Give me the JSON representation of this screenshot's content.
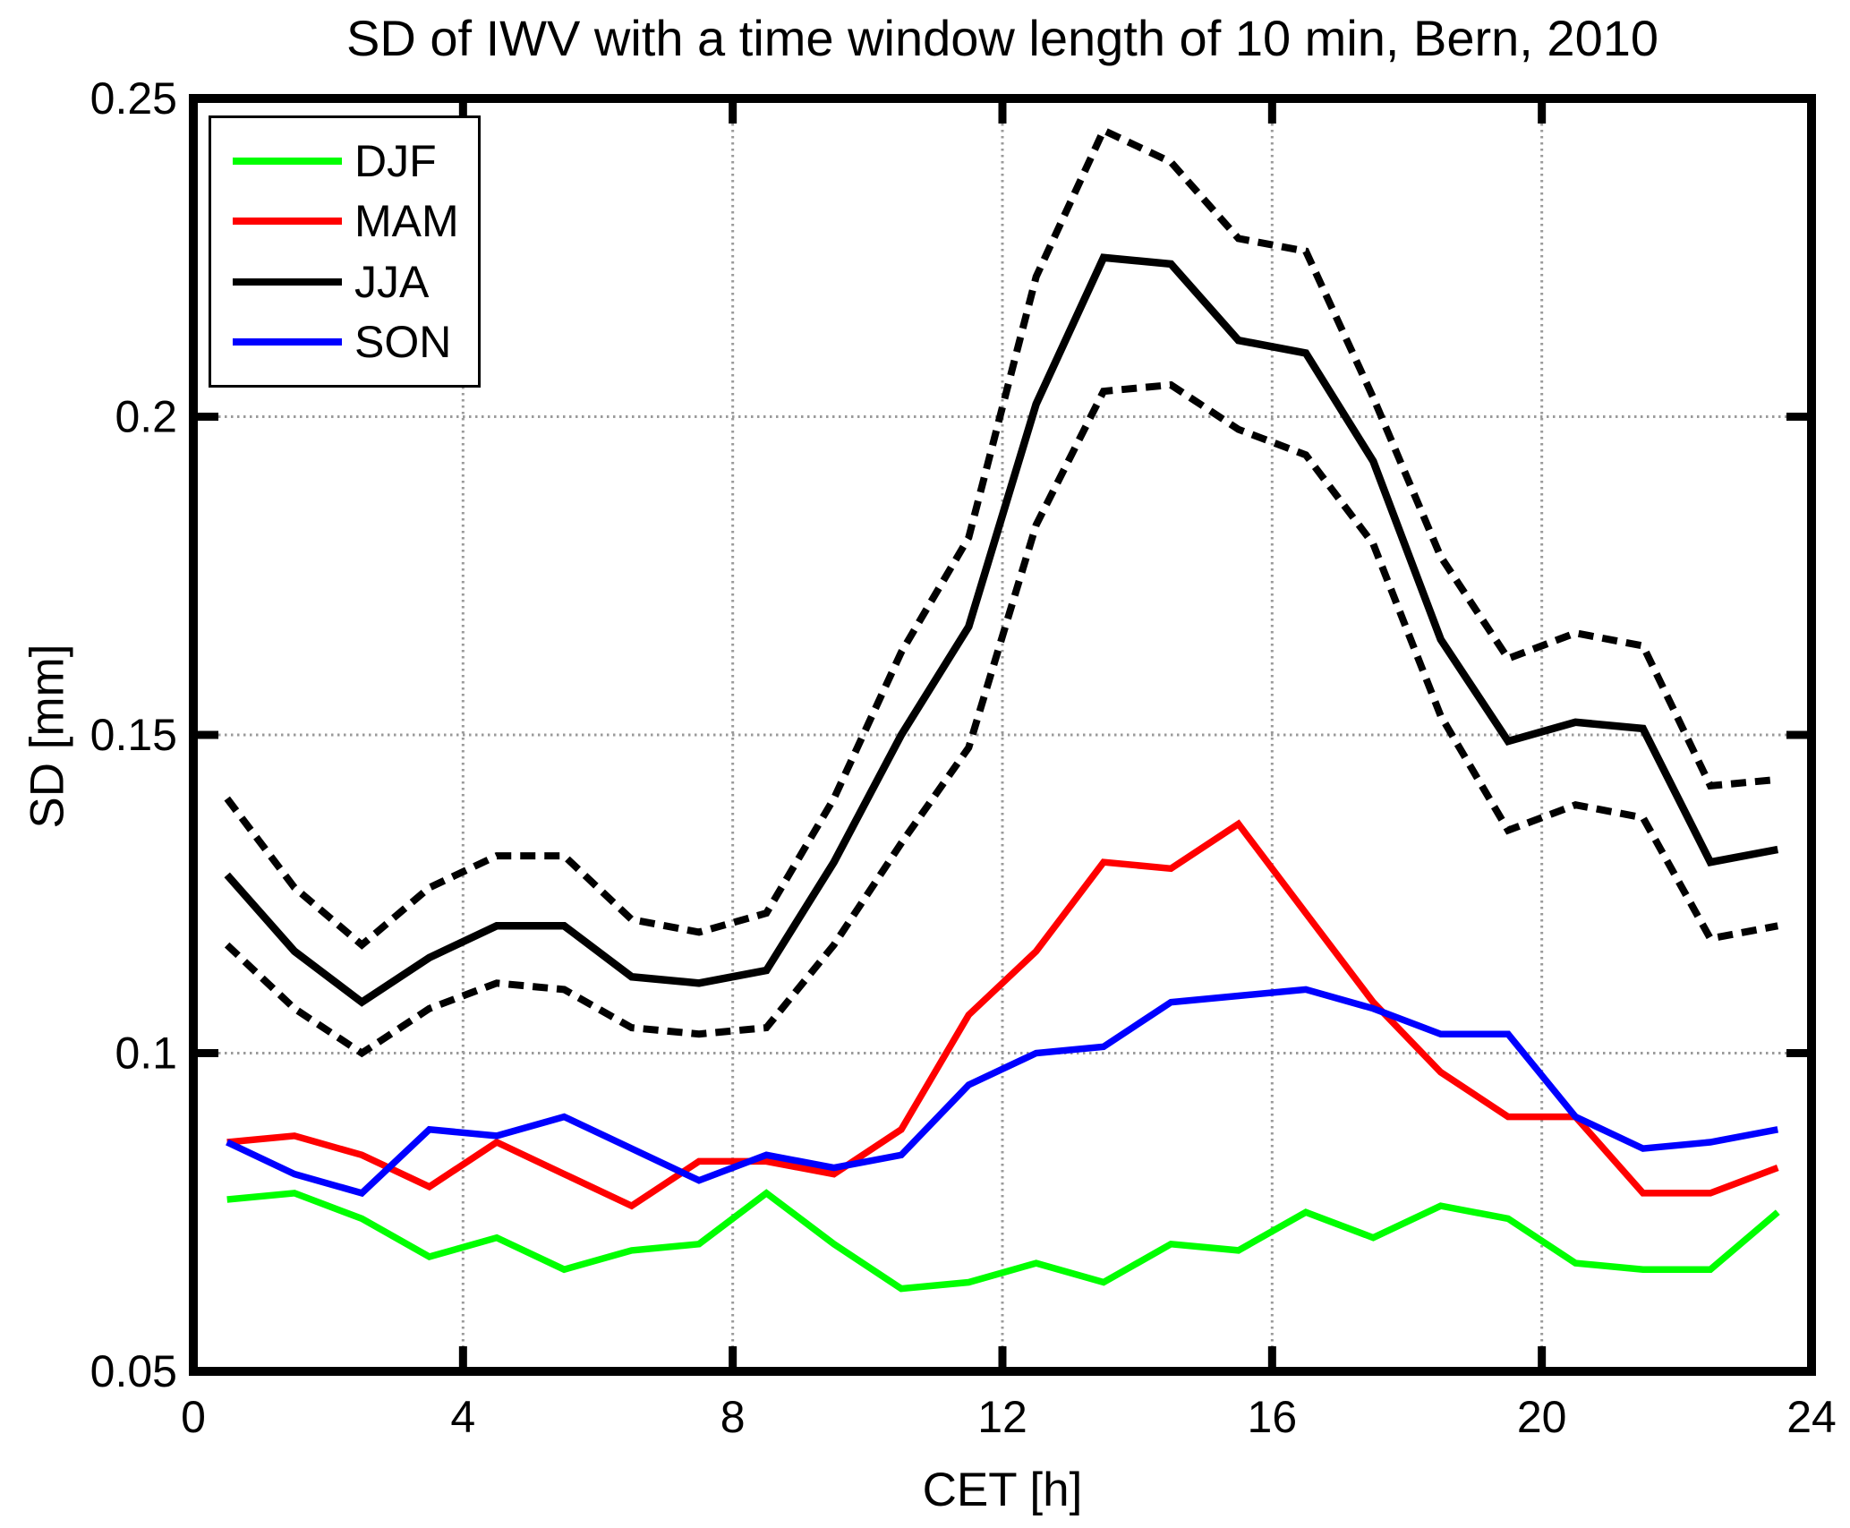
{
  "chart_data": {
    "type": "line",
    "title": "SD of IWV with a time window length of 10 min, Bern, 2010",
    "xlabel": "CET [h]",
    "ylabel": "SD [mm]",
    "xlim": [
      0,
      24
    ],
    "ylim": [
      0.05,
      0.25
    ],
    "x_ticks": [
      0,
      4,
      8,
      12,
      16,
      20,
      24
    ],
    "x_tick_labels": [
      "0",
      "4",
      "8",
      "12",
      "16",
      "20",
      "24"
    ],
    "y_ticks": [
      0.05,
      0.1,
      0.15,
      0.2,
      0.25
    ],
    "y_tick_labels": [
      "0.05",
      "0.1",
      "0.15",
      "0.2",
      "0.25"
    ],
    "grid": true,
    "legend_position": "top-left",
    "x": [
      0.5,
      1.5,
      2.5,
      3.5,
      4.5,
      5.5,
      6.5,
      7.5,
      8.5,
      9.5,
      10.5,
      11.5,
      12.5,
      13.5,
      14.5,
      15.5,
      16.5,
      17.5,
      18.5,
      19.5,
      20.5,
      21.5,
      22.5,
      23.5
    ],
    "series": [
      {
        "name": "DJF",
        "color": "#00ff00",
        "style": "solid",
        "width": 7.5,
        "in_legend": true,
        "values": [
          0.077,
          0.078,
          0.074,
          0.068,
          0.071,
          0.066,
          0.069,
          0.07,
          0.078,
          0.07,
          0.063,
          0.064,
          0.067,
          0.064,
          0.07,
          0.069,
          0.075,
          0.071,
          0.076,
          0.074,
          0.067,
          0.066,
          0.066,
          0.075
        ]
      },
      {
        "name": "MAM",
        "color": "#ff0000",
        "style": "solid",
        "width": 7.5,
        "in_legend": true,
        "values": [
          0.086,
          0.087,
          0.084,
          0.079,
          0.086,
          0.081,
          0.076,
          0.083,
          0.083,
          0.081,
          0.088,
          0.106,
          0.116,
          0.13,
          0.129,
          0.136,
          0.122,
          0.108,
          0.097,
          0.09,
          0.09,
          0.078,
          0.078,
          0.082
        ]
      },
      {
        "name": "JJA",
        "color": "#000000",
        "style": "solid",
        "width": 8.5,
        "in_legend": true,
        "values": [
          0.128,
          0.116,
          0.108,
          0.115,
          0.12,
          0.12,
          0.112,
          0.111,
          0.113,
          0.13,
          0.15,
          0.167,
          0.202,
          0.225,
          0.224,
          0.212,
          0.21,
          0.193,
          0.165,
          0.149,
          0.152,
          0.151,
          0.13,
          0.132
        ]
      },
      {
        "name": "SON",
        "color": "#0000ff",
        "style": "solid",
        "width": 7.5,
        "in_legend": true,
        "values": [
          0.086,
          0.081,
          0.078,
          0.088,
          0.087,
          0.09,
          0.085,
          0.08,
          0.084,
          0.082,
          0.084,
          0.095,
          0.1,
          0.101,
          0.108,
          0.109,
          0.11,
          0.107,
          0.103,
          0.103,
          0.09,
          0.085,
          0.086,
          0.088
        ]
      },
      {
        "name": "JJA upper bound",
        "color": "#000000",
        "style": "dashed",
        "width": 8,
        "in_legend": false,
        "values": [
          0.14,
          0.126,
          0.117,
          0.126,
          0.131,
          0.131,
          0.121,
          0.119,
          0.122,
          0.14,
          0.163,
          0.181,
          0.222,
          0.245,
          0.24,
          0.228,
          0.226,
          0.203,
          0.178,
          0.162,
          0.166,
          0.164,
          0.142,
          0.143
        ]
      },
      {
        "name": "JJA lower bound",
        "color": "#000000",
        "style": "dashed",
        "width": 8,
        "in_legend": false,
        "values": [
          0.117,
          0.107,
          0.1,
          0.107,
          0.111,
          0.11,
          0.104,
          0.103,
          0.104,
          0.117,
          0.133,
          0.148,
          0.183,
          0.204,
          0.205,
          0.198,
          0.194,
          0.18,
          0.153,
          0.135,
          0.139,
          0.137,
          0.118,
          0.12
        ]
      }
    ],
    "style": {
      "grid_color": "#9a9a9a",
      "axis_color": "#000000",
      "background": "#ffffff"
    }
  }
}
